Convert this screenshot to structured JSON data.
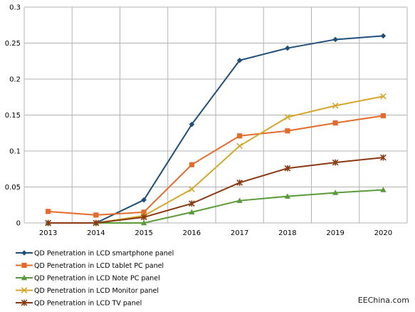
{
  "watermark": "EEChina.com",
  "chart_data": {
    "type": "line",
    "x": [
      "2013",
      "2014",
      "2015",
      "2016",
      "2017",
      "2018",
      "2019",
      "2020"
    ],
    "ylim": [
      0,
      0.3
    ],
    "yticks": [
      "0",
      "0.05",
      "0.1",
      "0.15",
      "0.2",
      "0.25",
      "0.3"
    ],
    "grid": true,
    "legend_position": "bottom-left",
    "series": [
      {
        "name": "QD Penetration in LCD smartphone panel",
        "color": "#1f4e79",
        "marker": "diamond",
        "values": [
          0,
          0,
          0.032,
          0.137,
          0.226,
          0.243,
          0.255,
          0.26
        ]
      },
      {
        "name": "QD Penetration in LCD tablet PC panel",
        "color": "#e26b2d",
        "marker": "square",
        "values": [
          0.016,
          0.011,
          0.015,
          0.081,
          0.121,
          0.128,
          0.139,
          0.149
        ]
      },
      {
        "name": "QD Penetration in LCD Note PC panel",
        "color": "#5a9a3a",
        "marker": "triangle",
        "values": [
          0,
          0,
          0,
          0.015,
          0.031,
          0.037,
          0.042,
          0.046
        ]
      },
      {
        "name": "QD Penetration in LCD Monitor panel",
        "color": "#d4a72c",
        "marker": "x",
        "values": [
          0,
          0,
          0.01,
          0.047,
          0.107,
          0.147,
          0.163,
          0.176
        ]
      },
      {
        "name": "QD Penetration in LCD TV panel",
        "color": "#8a3a12",
        "marker": "star",
        "values": [
          0,
          0,
          0.008,
          0.027,
          0.056,
          0.076,
          0.084,
          0.091
        ]
      }
    ]
  }
}
